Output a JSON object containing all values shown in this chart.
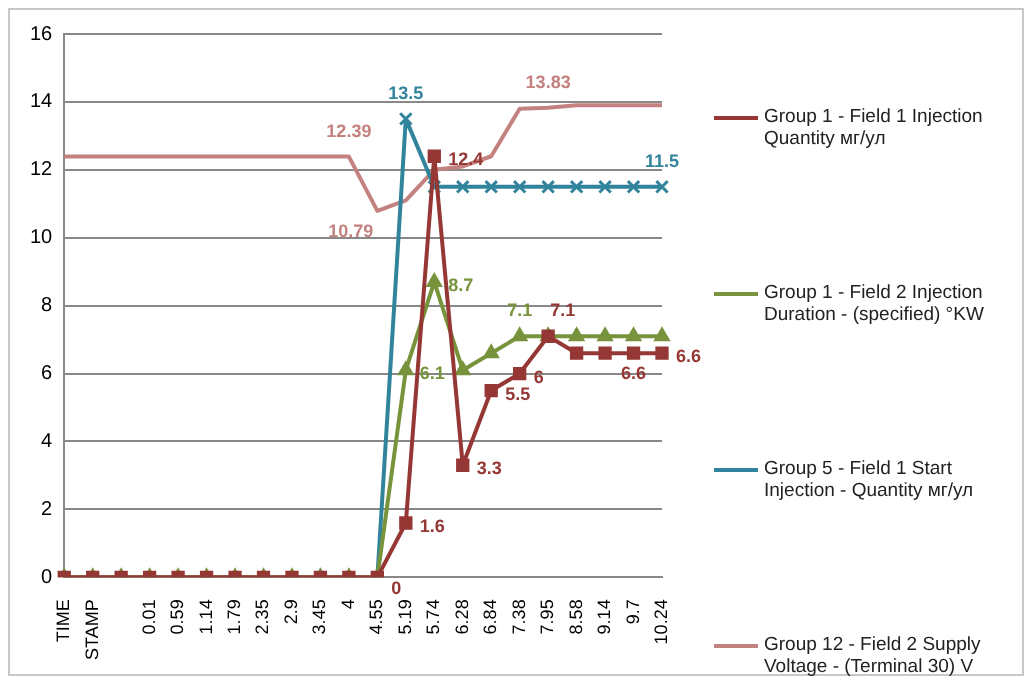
{
  "chart_data": {
    "type": "line",
    "categories": [
      "TIME",
      "STAMP",
      null,
      "0.01",
      "0.59",
      "1.14",
      "1.79",
      "2.35",
      "2.9",
      "3.45",
      "4",
      "4.55",
      "5.19",
      "5.74",
      "6.28",
      "6.84",
      "7.38",
      "7.95",
      "8.58",
      "9.14",
      "9.7",
      "10.24"
    ],
    "series": [
      {
        "name": "Group 1 - Field 1 Injection Quantity мг/ул",
        "color": "#953735",
        "marker": "square",
        "values": [
          0,
          0,
          0,
          0,
          0,
          0,
          0,
          0,
          0,
          0,
          0,
          0,
          1.6,
          12.4,
          3.3,
          5.5,
          6,
          7.1,
          6.6,
          6.6,
          6.6,
          6.6
        ],
        "value_labels": [
          null,
          null,
          null,
          null,
          null,
          null,
          null,
          null,
          null,
          null,
          null,
          "0",
          "1.6",
          "12.4",
          "3.3",
          "5.5",
          "6",
          "7.1",
          null,
          null,
          "6.6",
          "6.6"
        ]
      },
      {
        "name": "Group 1 - Field 2 Injection Duration - (specified) °KW",
        "color": "#77933c",
        "marker": "triangle",
        "values": [
          0,
          0,
          0,
          0,
          0,
          0,
          0,
          0,
          0,
          0,
          0,
          0,
          6.1,
          8.7,
          6.1,
          6.6,
          7.1,
          7.1,
          7.1,
          7.1,
          7.1,
          7.1
        ],
        "value_labels": [
          null,
          null,
          null,
          null,
          null,
          null,
          null,
          null,
          null,
          null,
          null,
          null,
          "6.1",
          "8.7",
          null,
          null,
          "7.1",
          null,
          null,
          null,
          null,
          null
        ]
      },
      {
        "name": "Group 5 - Field 1 Start Injection - Quantity мг/ул",
        "color": "#31849b",
        "marker": "cross",
        "values": [
          null,
          null,
          null,
          null,
          null,
          null,
          null,
          null,
          null,
          null,
          null,
          0,
          13.5,
          11.5,
          11.5,
          11.5,
          11.5,
          11.5,
          11.5,
          11.5,
          11.5,
          11.5
        ],
        "value_labels": [
          null,
          null,
          null,
          null,
          null,
          null,
          null,
          null,
          null,
          null,
          null,
          null,
          "13.5",
          null,
          null,
          null,
          null,
          null,
          null,
          null,
          null,
          "11.5"
        ]
      },
      {
        "name": "Group 12 - Field 2 Supply Voltage - (Terminal 30)  V",
        "color": "#c3827f",
        "marker": "none",
        "values": [
          12.39,
          12.39,
          12.39,
          12.39,
          12.39,
          12.39,
          12.39,
          12.39,
          12.39,
          12.39,
          12.39,
          10.79,
          11.1,
          12,
          12.1,
          12.4,
          13.8,
          13.83,
          13.9,
          13.9,
          13.9,
          13.9
        ],
        "value_labels": [
          null,
          null,
          null,
          null,
          null,
          null,
          null,
          null,
          null,
          null,
          "12.39",
          "10.79",
          null,
          null,
          null,
          null,
          null,
          "13.83",
          null,
          null,
          null,
          null
        ]
      }
    ],
    "ylim": [
      0,
      16
    ],
    "yticks": [
      0,
      2,
      4,
      6,
      8,
      10,
      12,
      14,
      16
    ],
    "grid": "y",
    "legend": "right",
    "line_style": "solid"
  }
}
